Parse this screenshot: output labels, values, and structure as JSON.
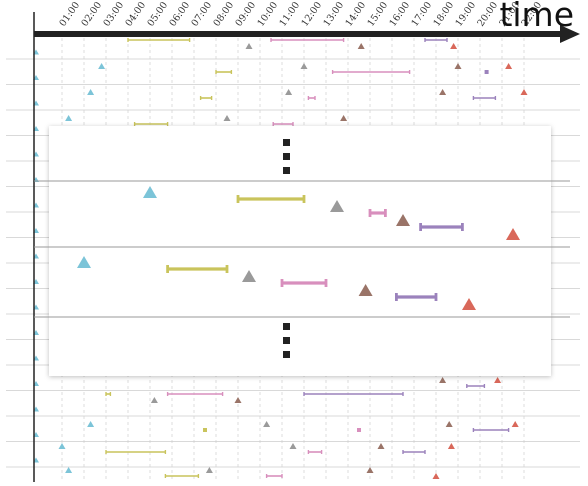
{
  "axis": {
    "title": "time",
    "tick_labels": [
      "01:00",
      "02:00",
      "03:00",
      "04:00",
      "05:00",
      "06:00",
      "07:00",
      "08:00",
      "09:00",
      "10:00",
      "11:00",
      "12:00",
      "13:00",
      "14:00",
      "15:00",
      "16:00",
      "17:00",
      "18:00",
      "19:00",
      "20:00",
      "21:00",
      "22:00"
    ]
  },
  "colors": {
    "blue": "#7cc4d8",
    "olive": "#c9c45c",
    "gray": "#9a9a9a",
    "pink": "#d88fbd",
    "brown": "#9a7468",
    "purple": "#9b82bc",
    "red": "#d9685a",
    "axis": "#222222",
    "row_line": "#cccccc",
    "grid": "#dddddd",
    "dots": "#222222"
  },
  "ellipsis_icon": "vertical-ellipsis-icon",
  "background_rows": [
    [
      [
        "olive",
        "bar",
        4.0,
        6.8
      ],
      [
        "gray",
        "tri",
        9.5
      ],
      [
        "pink",
        "bar",
        10.5,
        13.8
      ],
      [
        "brown",
        "tri",
        14.6
      ],
      [
        "purple",
        "bar",
        17.5,
        18.5
      ],
      [
        "red",
        "tri",
        18.8
      ]
    ],
    [
      [
        "blue",
        "tri",
        2.8
      ],
      [
        "olive",
        "bar",
        8.0,
        8.7
      ],
      [
        "gray",
        "tri",
        12.0
      ],
      [
        "pink",
        "bar",
        13.3,
        16.8
      ],
      [
        "brown",
        "tri",
        19.0
      ],
      [
        "purple",
        "dot",
        20.3
      ],
      [
        "red",
        "tri",
        21.3
      ]
    ],
    [
      [
        "blue",
        "tri",
        2.3
      ],
      [
        "olive",
        "bar",
        7.3,
        7.8
      ],
      [
        "gray",
        "tri",
        11.3
      ],
      [
        "pink",
        "bar",
        12.2,
        12.5
      ],
      [
        "brown",
        "tri",
        18.3
      ],
      [
        "purple",
        "bar",
        19.7,
        20.7
      ],
      [
        "red",
        "tri",
        22.0
      ]
    ],
    [
      [
        "blue",
        "tri",
        1.3
      ],
      [
        "olive",
        "bar",
        4.3,
        5.8
      ],
      [
        "gray",
        "tri",
        8.5
      ],
      [
        "pink",
        "bar",
        10.6,
        11.5
      ],
      [
        "brown",
        "tri",
        13.8
      ]
    ],
    [
      [
        "brown",
        "tri",
        18.3
      ],
      [
        "purple",
        "bar",
        19.4,
        20.2
      ],
      [
        "red",
        "tri",
        20.8
      ]
    ],
    [
      [
        "olive",
        "bar",
        3.0,
        3.2
      ],
      [
        "gray",
        "tri",
        5.2
      ],
      [
        "pink",
        "bar",
        5.8,
        8.3
      ],
      [
        "brown",
        "tri",
        9.0
      ],
      [
        "purple",
        "bar",
        12.0,
        16.5
      ]
    ],
    [
      [
        "blue",
        "tri",
        2.3
      ],
      [
        "olive",
        "dot",
        7.5
      ],
      [
        "gray",
        "tri",
        10.3
      ],
      [
        "pink",
        "dot",
        14.5
      ],
      [
        "brown",
        "tri",
        18.6
      ],
      [
        "purple",
        "bar",
        19.7,
        21.3
      ],
      [
        "red",
        "tri",
        21.6
      ]
    ],
    [
      [
        "blue",
        "tri",
        1.0
      ],
      [
        "olive",
        "bar",
        3.0,
        5.7
      ],
      [
        "gray",
        "tri",
        11.5
      ],
      [
        "pink",
        "bar",
        12.2,
        12.8
      ],
      [
        "brown",
        "tri",
        15.5
      ],
      [
        "purple",
        "bar",
        16.5,
        17.5
      ],
      [
        "red",
        "tri",
        18.7
      ]
    ],
    [
      [
        "blue",
        "tri",
        1.3
      ],
      [
        "olive",
        "bar",
        5.7,
        7.2
      ],
      [
        "gray",
        "tri",
        7.7
      ],
      [
        "pink",
        "bar",
        10.3,
        11.0
      ],
      [
        "brown",
        "tri",
        15.0
      ],
      [
        "red",
        "tri",
        18.0
      ]
    ]
  ],
  "zoom_rows": [
    [
      [
        "blue",
        "tri",
        5.0
      ],
      [
        "olive",
        "bar",
        9.0,
        12.0
      ],
      [
        "gray",
        "tri",
        13.5
      ],
      [
        "pink",
        "bar",
        15.0,
        15.7
      ],
      [
        "brown",
        "tri",
        16.5
      ],
      [
        "purple",
        "bar",
        17.3,
        19.2
      ],
      [
        "red",
        "tri",
        21.5
      ]
    ],
    [
      [
        "blue",
        "tri",
        2.0
      ],
      [
        "olive",
        "bar",
        5.8,
        8.5
      ],
      [
        "gray",
        "tri",
        9.5
      ],
      [
        "pink",
        "bar",
        11.0,
        13.0
      ],
      [
        "brown",
        "tri",
        14.8
      ],
      [
        "purple",
        "bar",
        16.2,
        18.0
      ],
      [
        "red",
        "tri",
        19.5
      ]
    ]
  ]
}
